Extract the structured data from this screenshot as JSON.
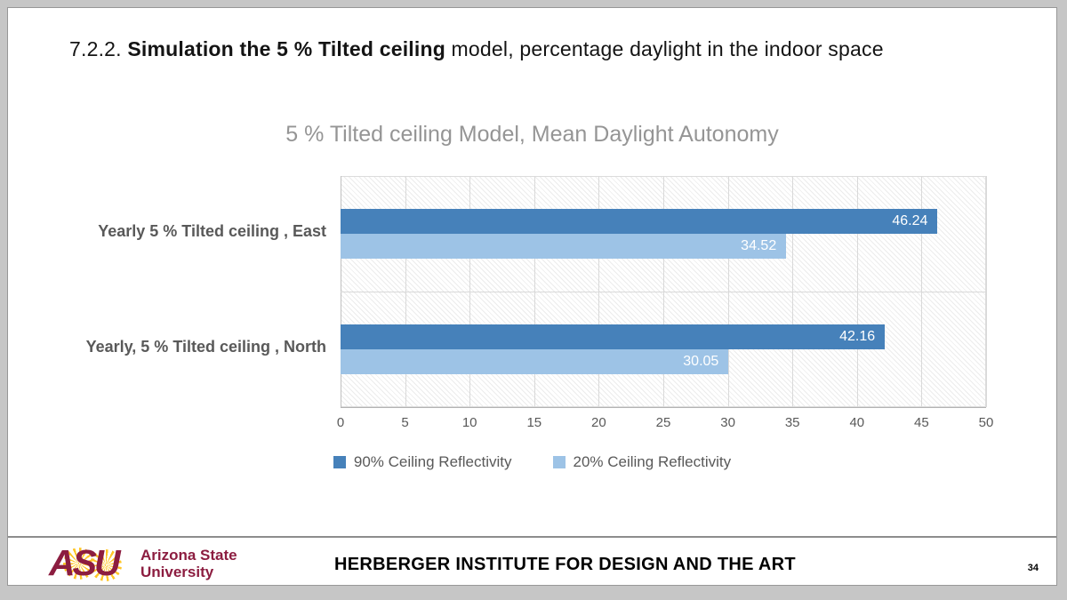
{
  "slide": {
    "title_prefix": "7.2.2. ",
    "title_bold": "Simulation the 5 % Tilted ceiling",
    "title_suffix": " model, percentage daylight in the indoor space",
    "page_number": "34"
  },
  "footer": {
    "institute": "HERBERGER INSTITUTE FOR DESIGN AND THE ART",
    "logo": {
      "letters": "ASU",
      "name_line1": "Arizona State",
      "name_line2": "University",
      "maroon": "#8C1D40",
      "gold": "#FFC627"
    }
  },
  "chart_data": {
    "type": "bar",
    "orientation": "horizontal",
    "title": "5 % Tilted ceiling Model, Mean Daylight Autonomy",
    "categories": [
      "Yearly 5 % Tilted ceiling , East",
      "Yearly, 5 % Tilted ceiling , North"
    ],
    "series": [
      {
        "name": "90% Ceiling Reflectivity",
        "color": "#4681BA",
        "values": [
          46.24,
          42.16
        ],
        "labels": [
          "46.24",
          "42.16"
        ]
      },
      {
        "name": "20% Ceiling Reflectivity",
        "color": "#9DC3E6",
        "values": [
          34.52,
          30.05
        ],
        "labels": [
          "34.52",
          "30.05"
        ]
      }
    ],
    "xlim": [
      0,
      50
    ],
    "x_ticks": [
      0,
      5,
      10,
      15,
      20,
      25,
      30,
      35,
      40,
      45,
      50
    ],
    "grid": true,
    "legend_position": "bottom",
    "plot_hatch": true,
    "data_label_color": "#ffffff",
    "axis_text_color": "#595959",
    "title_color": "#959595"
  }
}
